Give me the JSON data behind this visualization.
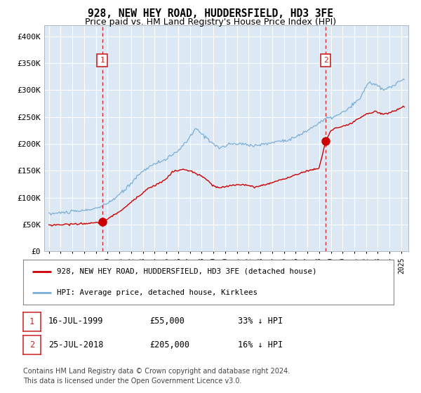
{
  "title": "928, NEW HEY ROAD, HUDDERSFIELD, HD3 3FE",
  "subtitle": "Price paid vs. HM Land Registry's House Price Index (HPI)",
  "bg_color": "#dce9f5",
  "grid_color": "#ffffff",
  "fig_bg_color": "#ffffff",
  "hpi_color": "#7aaed6",
  "price_color": "#cc0000",
  "marker_color": "#cc0000",
  "annotation_box_color": "#cc2222",
  "annotation_text_color": "#cc2222",
  "vline_color": "#cc0000",
  "ylim": [
    0,
    420000
  ],
  "yticks": [
    0,
    50000,
    100000,
    150000,
    200000,
    250000,
    300000,
    350000,
    400000
  ],
  "ytick_labels": [
    "£0",
    "£50K",
    "£100K",
    "£150K",
    "£200K",
    "£250K",
    "£300K",
    "£350K",
    "£400K"
  ],
  "purchase1_year": 1999.54,
  "purchase1_price": 55000,
  "purchase1_label": "1",
  "purchase2_year": 2018.56,
  "purchase2_price": 205000,
  "purchase2_label": "2",
  "legend_label_price": "928, NEW HEY ROAD, HUDDERSFIELD, HD3 3FE (detached house)",
  "legend_label_hpi": "HPI: Average price, detached house, Kirklees",
  "note1_num": "1",
  "note1_date": "16-JUL-1999",
  "note1_price": "£55,000",
  "note1_hpi": "33% ↓ HPI",
  "note2_num": "2",
  "note2_date": "25-JUL-2018",
  "note2_price": "£205,000",
  "note2_hpi": "16% ↓ HPI",
  "footer": "Contains HM Land Registry data © Crown copyright and database right 2024.\nThis data is licensed under the Open Government Licence v3.0.",
  "hpi_keypoints": [
    [
      1995.0,
      70000
    ],
    [
      1996.5,
      73000
    ],
    [
      1998.0,
      76000
    ],
    [
      1999.5,
      83000
    ],
    [
      2000.5,
      97000
    ],
    [
      2001.5,
      115000
    ],
    [
      2002.5,
      140000
    ],
    [
      2003.5,
      158000
    ],
    [
      2004.5,
      167000
    ],
    [
      2005.5,
      178000
    ],
    [
      2006.5,
      198000
    ],
    [
      2007.5,
      228000
    ],
    [
      2008.5,
      210000
    ],
    [
      2009.5,
      192000
    ],
    [
      2010.5,
      200000
    ],
    [
      2011.5,
      200000
    ],
    [
      2012.5,
      197000
    ],
    [
      2013.5,
      200000
    ],
    [
      2014.5,
      205000
    ],
    [
      2015.5,
      208000
    ],
    [
      2016.5,
      218000
    ],
    [
      2017.5,
      232000
    ],
    [
      2018.5,
      246000
    ],
    [
      2019.5,
      252000
    ],
    [
      2020.5,
      265000
    ],
    [
      2021.5,
      285000
    ],
    [
      2022.2,
      315000
    ],
    [
      2022.8,
      310000
    ],
    [
      2023.5,
      300000
    ],
    [
      2024.0,
      305000
    ],
    [
      2025.2,
      320000
    ]
  ],
  "price_keypoints": [
    [
      1995.0,
      49000
    ],
    [
      1996.0,
      50000
    ],
    [
      1997.0,
      51000
    ],
    [
      1998.0,
      52000
    ],
    [
      1999.0,
      53000
    ],
    [
      1999.54,
      55000
    ],
    [
      2000.5,
      67000
    ],
    [
      2001.5,
      82000
    ],
    [
      2002.5,
      101000
    ],
    [
      2003.5,
      118000
    ],
    [
      2004.5,
      128000
    ],
    [
      2005.0,
      135000
    ],
    [
      2005.5,
      148000
    ],
    [
      2006.0,
      151000
    ],
    [
      2006.5,
      152000
    ],
    [
      2007.0,
      150000
    ],
    [
      2007.5,
      145000
    ],
    [
      2008.0,
      140000
    ],
    [
      2008.5,
      132000
    ],
    [
      2009.0,
      122000
    ],
    [
      2009.5,
      118000
    ],
    [
      2010.0,
      120000
    ],
    [
      2010.5,
      123000
    ],
    [
      2011.0,
      124000
    ],
    [
      2011.5,
      125000
    ],
    [
      2012.0,
      122000
    ],
    [
      2012.5,
      120000
    ],
    [
      2013.0,
      122000
    ],
    [
      2013.5,
      125000
    ],
    [
      2014.0,
      128000
    ],
    [
      2014.5,
      132000
    ],
    [
      2015.0,
      135000
    ],
    [
      2015.5,
      138000
    ],
    [
      2016.0,
      142000
    ],
    [
      2016.5,
      147000
    ],
    [
      2017.0,
      150000
    ],
    [
      2017.5,
      152000
    ],
    [
      2018.0,
      155000
    ],
    [
      2018.56,
      205000
    ],
    [
      2019.0,
      225000
    ],
    [
      2019.5,
      230000
    ],
    [
      2020.0,
      232000
    ],
    [
      2020.5,
      235000
    ],
    [
      2021.0,
      242000
    ],
    [
      2021.5,
      248000
    ],
    [
      2022.0,
      255000
    ],
    [
      2022.5,
      258000
    ],
    [
      2022.8,
      262000
    ],
    [
      2023.0,
      258000
    ],
    [
      2023.5,
      255000
    ],
    [
      2024.0,
      258000
    ],
    [
      2024.5,
      262000
    ],
    [
      2025.2,
      270000
    ]
  ]
}
